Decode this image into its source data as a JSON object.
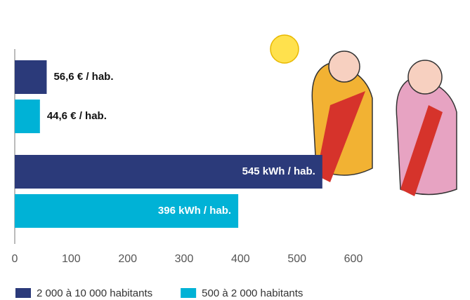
{
  "chart_data": {
    "type": "hbar",
    "categories": [
      null,
      null
    ],
    "series": [
      {
        "name": "2 000 à 10 000 habitants",
        "color": "#2b3a7a",
        "values": [
          56.6,
          545
        ],
        "value_labels": [
          "56,6 € / hab.",
          "545 kWh / hab."
        ]
      },
      {
        "name": "500 à 2 000 habitants",
        "color": "#00b2d6",
        "values": [
          44.6,
          396
        ],
        "value_labels": [
          "44,6 € / hab.",
          "396 kWh / hab."
        ]
      }
    ],
    "xlim": [
      0,
      600
    ],
    "xticks": [
      0,
      100,
      200,
      300,
      400,
      500,
      600
    ],
    "grid": false,
    "legend": "bottom"
  }
}
